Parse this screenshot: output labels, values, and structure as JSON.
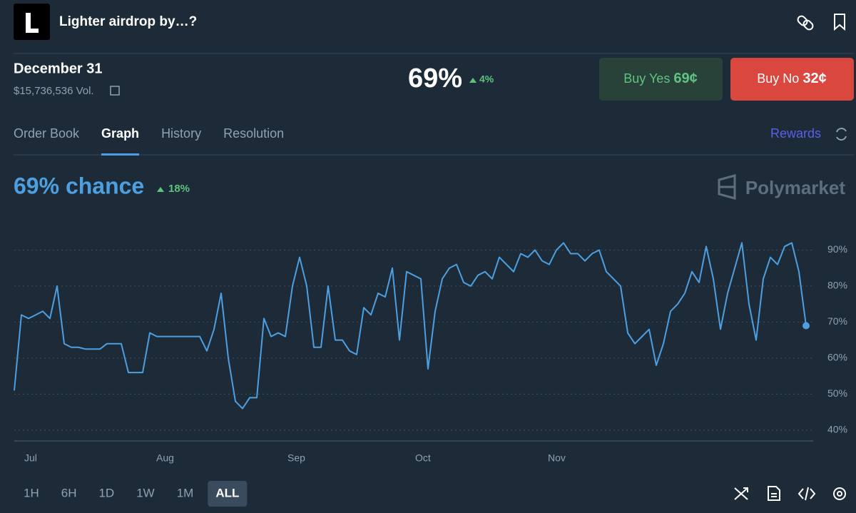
{
  "header": {
    "title": "Lighter airdrop by…?"
  },
  "market": {
    "date": "December 31",
    "volume": "$15,736,536 Vol.",
    "probability": "69%",
    "change": "4%"
  },
  "buttons": {
    "yes": {
      "label": "Buy Yes",
      "price": "69¢"
    },
    "no": {
      "label": "Buy No",
      "price": "32¢"
    }
  },
  "tabs": [
    "Order Book",
    "Graph",
    "History",
    "Resolution"
  ],
  "active_tab": 1,
  "rewards": "Rewards",
  "chart_data": {
    "type": "line",
    "title": "69% chance",
    "change": "18%",
    "brand": "Polymarket",
    "color": "#4d9fe0",
    "values": [
      51,
      72,
      71,
      72,
      73,
      71,
      80,
      64,
      63,
      63,
      62.5,
      62.5,
      62.5,
      64,
      64,
      64,
      56,
      56,
      56,
      67,
      66,
      66,
      66,
      66,
      66,
      66,
      66,
      62,
      68,
      78,
      60,
      48,
      46,
      49,
      49,
      71,
      66,
      67,
      66,
      80,
      88,
      80,
      63,
      63,
      80,
      65,
      65,
      62,
      61,
      74,
      72,
      78,
      77,
      85,
      65,
      84,
      83,
      82,
      57,
      73,
      82,
      85,
      86,
      81,
      80,
      83,
      84,
      82,
      88,
      86,
      84,
      89,
      88,
      90,
      87,
      86,
      90,
      92,
      89,
      89,
      87,
      89,
      90,
      84,
      82,
      80,
      67,
      64,
      66,
      68,
      58,
      64,
      73,
      75,
      78,
      84,
      81,
      91,
      82,
      68,
      78,
      85,
      92,
      75,
      65,
      82,
      88,
      86,
      91,
      92,
      84,
      69
    ],
    "xlim": [
      0,
      111
    ],
    "xticks": [
      {
        "value": 2.2,
        "label": "Jul"
      },
      {
        "value": 20.7,
        "label": "Aug"
      },
      {
        "value": 39.1,
        "label": "Sep"
      },
      {
        "value": 57,
        "label": "Oct"
      },
      {
        "value": 75.6,
        "label": "Nov"
      }
    ],
    "ylim": [
      37,
      100
    ],
    "yticks": [
      {
        "value": 40,
        "label": "40%"
      },
      {
        "value": 50,
        "label": "50%"
      },
      {
        "value": 60,
        "label": "60%"
      },
      {
        "value": 70,
        "label": "70%"
      },
      {
        "value": 80,
        "label": "80%"
      },
      {
        "value": 90,
        "label": "90%"
      }
    ],
    "grid": true
  },
  "ranges": [
    "1H",
    "6H",
    "1D",
    "1W",
    "1M",
    "ALL"
  ],
  "active_range": 5
}
